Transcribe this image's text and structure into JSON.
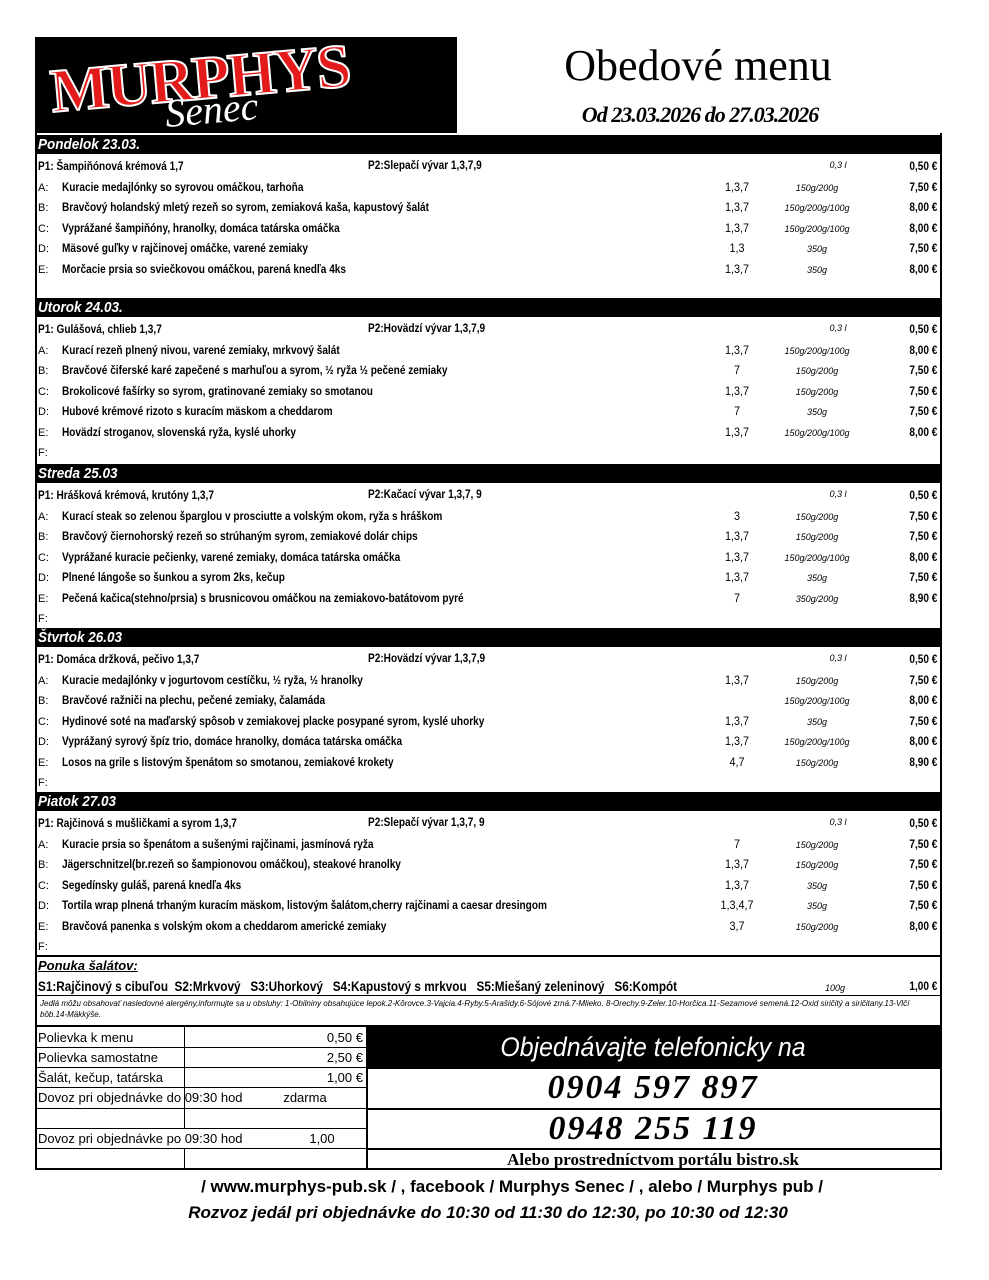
{
  "header": {
    "logo": "MURPHYS",
    "logo_sub": "Senec",
    "title": "Obedové menu",
    "dates": "Od 23.03.2026 do 27.03.2026"
  },
  "days": [
    {
      "name": "Pondelok 23.03.",
      "soups": {
        "p1": "P1: Šampiňónová krémová 1,7",
        "p2": "P2:Slepačí vývar 1,3,7,9",
        "size": "0,3 l",
        "price": "0,50 €"
      },
      "items": [
        {
          "letter": "A:",
          "name": "Kuracie medajlónky so syrovou omáčkou, tarhoňa",
          "allergens": "1,3,7",
          "weight": "150g/200g",
          "price": "7,50 €"
        },
        {
          "letter": "B:",
          "name": "Bravčový holandský mletý rezeň so syrom, zemiaková kaša, kapustový šalát",
          "allergens": "1,3,7",
          "weight": "150g/200g/100g",
          "price": "8,00 €"
        },
        {
          "letter": "C:",
          "name": "Vyprážané šampiňóny, hranolky, domáca tatárska omáčka",
          "allergens": "1,3,7",
          "weight": "150g/200g/100g",
          "price": "8,00 €"
        },
        {
          "letter": "D:",
          "name": "Mäsové guľky v rajčinovej omáčke, varené zemiaky",
          "allergens": "1,3",
          "weight": "350g",
          "price": "7,50 €"
        },
        {
          "letter": "E:",
          "name": "Morčacie prsia so sviečkovou omáčkou, parená knedľa 4ks",
          "allergens": "1,3,7",
          "weight": "350g",
          "price": "8,00 €"
        }
      ]
    },
    {
      "name": "Utorok 24.03.",
      "soups": {
        "p1": "P1: Gulášová, chlieb 1,3,7",
        "p2": "P2:Hovädzí vývar 1,3,7,9",
        "size": "0,3 l",
        "price": "0,50 €"
      },
      "items": [
        {
          "letter": "A:",
          "name": "Kurací rezeň plnený nivou, varené zemiaky, mrkvový šalát",
          "allergens": "1,3,7",
          "weight": "150g/200g/100g",
          "price": "8,00 €"
        },
        {
          "letter": "B:",
          "name": "Bravčové čiferské karé zapečené s marhuľou a syrom, ½ ryža ½ pečené zemiaky",
          "allergens": "7",
          "weight": "150g/200g",
          "price": "7,50 €"
        },
        {
          "letter": "C:",
          "name": "Brokolicové fašírky so syrom, gratinované zemiaky so smotanou",
          "allergens": "1,3,7",
          "weight": "150g/200g",
          "price": "7,50 €"
        },
        {
          "letter": "D:",
          "name": "Hubové krémové rizoto s kuracím mäskom a cheddarom",
          "allergens": "7",
          "weight": "350g",
          "price": "7,50 €"
        },
        {
          "letter": "E:",
          "name": "Hovädzí stroganov, slovenská ryža, kyslé uhorky",
          "allergens": "1,3,7",
          "weight": "150g/200g/100g",
          "price": "8,00 €"
        },
        {
          "letter": "F:"
        }
      ]
    },
    {
      "name": "Streda 25.03",
      "soups": {
        "p1": "P1: Hrášková krémová, krutóny 1,3,7",
        "p2": "P2:Kačací vývar 1,3,7, 9",
        "size": "0,3 l",
        "price": "0,50 €"
      },
      "items": [
        {
          "letter": "A:",
          "name": "Kurací steak so zelenou šparglou v prosciutte a volským okom, ryža s hráškom",
          "allergens": "3",
          "weight": "150g/200g",
          "price": "7,50 €"
        },
        {
          "letter": "B:",
          "name": "Bravčový čiernohorský rezeň so strúhaným syrom, zemiakové dolár chips",
          "allergens": "1,3,7",
          "weight": "150g/200g",
          "price": "7,50 €"
        },
        {
          "letter": "C:",
          "name": "Vyprážané kuracie pečienky, varené zemiaky, domáca tatárska omáčka",
          "allergens": "1,3,7",
          "weight": "150g/200g/100g",
          "price": "8,00 €"
        },
        {
          "letter": "D:",
          "name": "Plnené lángoše so šunkou a syrom 2ks, kečup",
          "allergens": "1,3,7",
          "weight": "350g",
          "price": "7,50 €"
        },
        {
          "letter": "E:",
          "name": "Pečená kačica(stehno/prsia) s brusnicovou omáčkou na zemiakovo-batátovom pyré",
          "allergens": "7",
          "weight": "350g/200g",
          "price": "8,90 €"
        },
        {
          "letter": "F:"
        }
      ]
    },
    {
      "name": "Štvrtok 26.03",
      "soups": {
        "p1": "P1: Domáca držková, pečivo 1,3,7",
        "p2": "P2:Hovädzí vývar 1,3,7,9",
        "size": "0,3 l",
        "price": "0,50 €"
      },
      "items": [
        {
          "letter": "A:",
          "name": "Kuracie medajlónky v jogurtovom cestíčku, ½ ryža, ½ hranolky",
          "allergens": "1,3,7",
          "weight": "150g/200g",
          "price": "7,50 €"
        },
        {
          "letter": "B:",
          "name": "Bravčové ražniči na plechu, pečené zemiaky, čalamáda",
          "weight": "150g/200g/100g",
          "price": "8,00 €"
        },
        {
          "letter": "C:",
          "name": "Hydinové soté na maďarský spôsob v zemiakovej placke posypané syrom, kyslé uhorky",
          "allergens": "1,3,7",
          "weight": "350g",
          "price": "7,50 €"
        },
        {
          "letter": "D:",
          "name": "Vyprážaný syrový špíz trio, domáce hranolky, domáca tatárska omáčka",
          "allergens": "1,3,7",
          "weight": "150g/200g/100g",
          "price": "8,00 €"
        },
        {
          "letter": "E:",
          "name": "Losos na grile s listovým špenátom so smotanou, zemiakové krokety",
          "allergens": "4,7",
          "weight": "150g/200g",
          "price": "8,90 €"
        },
        {
          "letter": "F:"
        }
      ]
    },
    {
      "name": "Piatok 27.03",
      "soups": {
        "p1": "P1: Rajčinová s mušličkami a syrom 1,3,7",
        "p2": "P2:Slepačí vývar 1,3,7, 9",
        "size": "0,3 l",
        "price": "0,50 €"
      },
      "items": [
        {
          "letter": "A:",
          "name": "Kuracie prsia so špenátom a sušenými rajčinami, jasmínová ryža",
          "allergens": "7",
          "weight": "150g/200g",
          "price": "7,50 €"
        },
        {
          "letter": "B:",
          "name": "Jägerschnitzel(br.rezeň so šampionovou omáčkou), steakové hranolky",
          "allergens": "1,3,7",
          "weight": "150g/200g",
          "price": "7,50 €"
        },
        {
          "letter": "C:",
          "name": "Segedínsky guláš, parená knedľa 4ks",
          "allergens": "1,3,7",
          "weight": "350g",
          "price": "7,50 €"
        },
        {
          "letter": "D:",
          "name": "Tortila wrap plnená trhaným kuracím mäskom, listovým šalátom,cherry rajčinami a caesar dresingom",
          "allergens": "1,3,4,7",
          "weight": "350g",
          "price": "7,50 €"
        },
        {
          "letter": "E:",
          "name": "Bravčová panenka s volským okom a cheddarom americké zemiaky",
          "allergens": "3,7",
          "weight": "150g/200g",
          "price": "8,00 €"
        },
        {
          "letter": "F:"
        }
      ]
    }
  ],
  "salads": {
    "title": "Ponuka šalátov:",
    "list": "S1:Rajčinový s cibuľou  S2:Mrkvový   S3:Uhorkový   S4:Kapustový s mrkvou   S5:Miešaný zeleninový   S6:Kompót",
    "weight": "100g",
    "price": "1,00 €"
  },
  "allergen_note": "Jedlá môžu obsahovať nasledovné alergény,informujte sa u obsluhy: 1-Obilniny obsahujúce lepok.2-Kôrovce.3-Vajcia.4-Ryby.5-Arašidy.6-Sójové zrná.7-Mlieko. 8-Orechy.9-Zeler.10-Horčica.11-Sezamové semená.12-Oxid siričitý a siričitany.13-Vlčí bôb.14-Mäkkýše.",
  "extras": [
    {
      "label": "Polievka k menu",
      "price": "0,50 €"
    },
    {
      "label": "Polievka samostatne",
      "price": "2,50 €"
    },
    {
      "label": "Šalát, kečup, tatárska",
      "price": "1,00 €"
    },
    {
      "label": "Dovoz pri objednávke do 09:30 hod",
      "price": "zdarma"
    },
    {
      "label": "Dovoz pri objednávke po 09:30 hod",
      "price": "1,00"
    }
  ],
  "order": {
    "title": "Objednávajte telefonicky na",
    "phones": [
      "0904 597 897",
      "0948 255 119"
    ],
    "portal": "Alebo prostredníctvom portálu bistro.sk"
  },
  "footer": {
    "links": "/ www.murphys-pub.sk / , facebook / Murphys Senec / , alebo / Murphys pub /",
    "delivery": "Rozvoz jedál pri objednávke do 10:30 od 11:30 do 12:30, po 10:30 od 12:30"
  }
}
